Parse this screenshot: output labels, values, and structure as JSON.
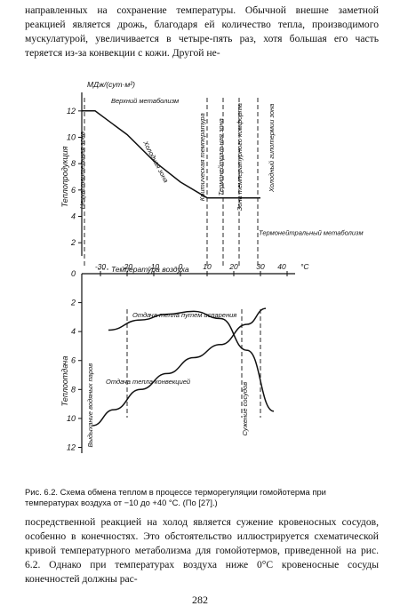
{
  "text": {
    "top_paragraph": "направленных на сохранение температуры. Обычной внешне заметной реакцией является дрожь, благодаря ей количество тепла, производимого мускулатурой, увеличивается в четыре-пять раз, хотя большая его часть теряется из-за конвекции с кожи. Другой не-",
    "caption": "Рис. 6.2. Схема обмена теплом в процессе терморегуляции гомойотерма при температурах воздуха от −10 до +40 °С. (По [27].)",
    "bottom_paragraph": "посредственной реакцией на холод является сужение кровеносных сосудов, особенно в конечностях. Это обстоятельство иллюстрируется схематической кривой температурного метаболизма для гомойотермов, приведенной на рис. 6.2. Однако при температурах воздуха ниже 0°С кровеносные сосуды конечностей должны рас-",
    "page_number": "282"
  },
  "chart_data": [
    {
      "type": "line",
      "panel": "upper",
      "ylabel": "Теплопродукция",
      "yunit": "МДж/(сут·м²)",
      "xlabel": "Температура воздуха",
      "y_ticks": [
        12,
        10,
        8,
        6,
        4,
        2
      ],
      "ylim": [
        1,
        13
      ],
      "series": [
        {
          "name": "Метаболизм",
          "x": [
            -37,
            -32,
            -20,
            -10,
            0,
            10,
            20,
            30
          ],
          "y": [
            12.0,
            12.0,
            10.2,
            8.2,
            6.6,
            5.4,
            5.4,
            5.4
          ]
        }
      ],
      "annotations": [
        {
          "text": "Верхний метаболизм",
          "x": -26,
          "y": 12.2
        },
        {
          "text": "Нечувствительная зона",
          "x": -36,
          "y": 7.5
        },
        {
          "text": "Холодная зона",
          "x": -14,
          "y": 9.6
        },
        {
          "text": "Критическая температура",
          "x": 9,
          "y": 8.5
        },
        {
          "text": "Термонейтральная зона",
          "x": 16,
          "y": 8.5
        },
        {
          "text": "Зона температурного комфорта",
          "x": 23,
          "y": 8.5
        },
        {
          "text": "Холодный гипотермии зона",
          "x": 35,
          "y": 9.2
        },
        {
          "text": "Термонейтральный метаболизм",
          "x": 34,
          "y": 2.6
        }
      ],
      "vertical_markers": [
        -36,
        10,
        16,
        22,
        29
      ]
    },
    {
      "type": "line",
      "panel": "lower",
      "ylabel": "Теплоотдача",
      "x_ticks": [
        -30,
        -20,
        -10,
        0,
        10,
        20,
        30,
        40
      ],
      "x_unit": "°С",
      "y_ticks": [
        2,
        4,
        6,
        8,
        10,
        12
      ],
      "ylim": [
        0,
        12.4
      ],
      "series": [
        {
          "name": "Отдача тепла путем испарения",
          "x": [
            -27,
            -15,
            -5,
            5,
            15,
            25,
            35
          ],
          "y": [
            3.9,
            3.2,
            2.8,
            2.6,
            3.1,
            5.3,
            9.5
          ]
        },
        {
          "name": "Отдача тепла конвекцией",
          "x": [
            -33,
            -25,
            -15,
            -5,
            5,
            15,
            25,
            32
          ],
          "y": [
            10.5,
            9.4,
            8.0,
            6.9,
            5.8,
            4.9,
            3.5,
            2.4
          ]
        }
      ],
      "annotations": [
        {
          "text": "Отдача тепла путем испарения",
          "x": -18,
          "y": 3.0
        },
        {
          "text": "Отдача тепла конвекцией",
          "x": -28,
          "y": 7.6
        },
        {
          "text": "Выдыхание водяных паров",
          "x": -33,
          "y": 12.0
        },
        {
          "text": "Сужение сосудов",
          "x": 25,
          "y": 11.2
        }
      ],
      "vertical_markers": [
        -20,
        23,
        30
      ]
    }
  ]
}
